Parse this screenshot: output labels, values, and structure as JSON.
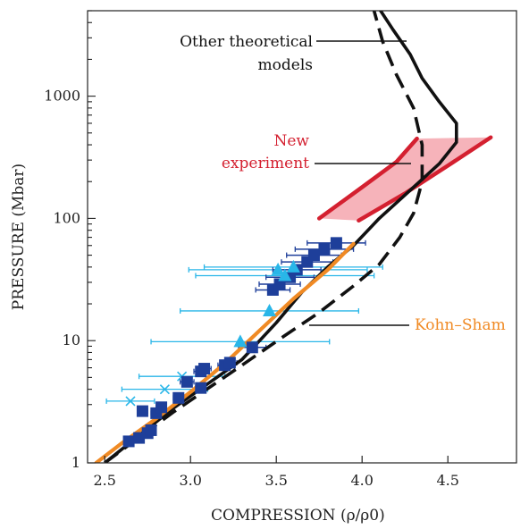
{
  "chart_data": {
    "type": "scatter",
    "xlabel": "COMPRESSION",
    "xlabel_formula": "(ρ/ρ0)",
    "ylabel": "PRESSURE (Mbar)",
    "xlim": [
      2.4,
      4.9
    ],
    "ylim": [
      1,
      5000
    ],
    "yscale": "log",
    "grid": false,
    "x_ticks": [
      2.5,
      3.0,
      3.5,
      4.0,
      4.5
    ],
    "x_tick_labels": [
      "2.5",
      "3.0",
      "3.5",
      "4.0",
      "4.5"
    ],
    "y_ticks": [
      1,
      10,
      100,
      1000
    ],
    "y_tick_labels": [
      "1",
      "10",
      "100",
      "1000"
    ],
    "annotations": {
      "other_models": [
        "Other theoretical",
        "models"
      ],
      "new_experiment": [
        "New",
        "experiment"
      ],
      "kohn_sham": "Kohn–Sham"
    },
    "colors": {
      "kohn_sham": "#f08a24",
      "new_experiment": "#d42030",
      "new_experiment_fill": "#f4a6ae",
      "square_points": "#1e3f9a",
      "triangle_points": "#29b6e8",
      "models": "#111111"
    },
    "series": [
      {
        "style": "kohn-sham-line",
        "points": [
          [
            2.45,
            1.0
          ],
          [
            2.6,
            1.45
          ],
          [
            2.8,
            2.3
          ],
          [
            3.0,
            3.8
          ],
          [
            3.2,
            6.5
          ],
          [
            3.4,
            12
          ],
          [
            3.6,
            22
          ],
          [
            3.8,
            38
          ],
          [
            3.95,
            62
          ]
        ]
      },
      {
        "style": "model-solid",
        "points": [
          [
            2.5,
            1.0
          ],
          [
            2.9,
            2.8
          ],
          [
            3.3,
            7.0
          ],
          [
            3.5,
            14
          ],
          [
            3.65,
            25
          ],
          [
            3.8,
            40
          ],
          [
            3.95,
            60
          ],
          [
            4.1,
            100
          ],
          [
            4.3,
            180
          ],
          [
            4.45,
            280
          ],
          [
            4.55,
            420
          ],
          [
            4.55,
            600
          ],
          [
            4.45,
            900
          ],
          [
            4.35,
            1400
          ],
          [
            4.28,
            2200
          ],
          [
            4.18,
            3500
          ],
          [
            4.1,
            5200
          ]
        ]
      },
      {
        "style": "model-dashed",
        "points": [
          [
            2.5,
            1.0
          ],
          [
            2.9,
            2.6
          ],
          [
            3.3,
            6.3
          ],
          [
            3.55,
            11
          ],
          [
            3.75,
            17
          ],
          [
            3.95,
            28
          ],
          [
            4.1,
            42
          ],
          [
            4.22,
            70
          ],
          [
            4.3,
            110
          ],
          [
            4.35,
            200
          ],
          [
            4.35,
            400
          ],
          [
            4.3,
            800
          ],
          [
            4.2,
            1500
          ],
          [
            4.12,
            2800
          ],
          [
            4.07,
            5000
          ]
        ]
      },
      {
        "style": "experiment-band",
        "upper": [
          [
            3.75,
            100
          ],
          [
            4.0,
            180
          ],
          [
            4.2,
            290
          ],
          [
            4.32,
            450
          ]
        ],
        "lower": [
          [
            3.98,
            96
          ],
          [
            4.25,
            160
          ],
          [
            4.5,
            270
          ],
          [
            4.75,
            460
          ]
        ]
      },
      {
        "style": "squares",
        "points": [
          {
            "x": 2.64,
            "y": 1.5,
            "xerr": 0.02
          },
          {
            "x": 2.7,
            "y": 1.6,
            "xerr": 0.03
          },
          {
            "x": 2.75,
            "y": 1.75,
            "xerr": 0.02
          },
          {
            "x": 2.77,
            "y": 1.85,
            "xerr": 0.02
          },
          {
            "x": 2.72,
            "y": 2.65,
            "xerr": 0.03
          },
          {
            "x": 2.8,
            "y": 2.55,
            "xerr": 0.03
          },
          {
            "x": 2.83,
            "y": 2.85,
            "xerr": 0.03
          },
          {
            "x": 2.93,
            "y": 3.4,
            "xerr": 0.03
          },
          {
            "x": 2.98,
            "y": 4.6,
            "xerr": 0.04
          },
          {
            "x": 3.06,
            "y": 4.1,
            "xerr": 0.03
          },
          {
            "x": 3.06,
            "y": 5.6,
            "xerr": 0.04
          },
          {
            "x": 3.08,
            "y": 5.9,
            "xerr": 0.04
          },
          {
            "x": 3.2,
            "y": 6.3,
            "xerr": 0.04
          },
          {
            "x": 3.23,
            "y": 6.6,
            "xerr": 0.04
          },
          {
            "x": 3.36,
            "y": 8.8,
            "xerr": 0.08
          },
          {
            "x": 3.48,
            "y": 26,
            "xerr": 0.1
          },
          {
            "x": 3.52,
            "y": 29,
            "xerr": 0.12
          },
          {
            "x": 3.58,
            "y": 33,
            "xerr": 0.14
          },
          {
            "x": 3.62,
            "y": 38,
            "xerr": 0.14
          },
          {
            "x": 3.68,
            "y": 44,
            "xerr": 0.15
          },
          {
            "x": 3.72,
            "y": 50,
            "xerr": 0.16
          },
          {
            "x": 3.78,
            "y": 56,
            "xerr": 0.17
          },
          {
            "x": 3.85,
            "y": 63,
            "xerr": 0.17
          }
        ]
      },
      {
        "style": "triangles",
        "points": [
          {
            "x": 3.51,
            "y": 38,
            "xerr": 0.52
          },
          {
            "x": 3.6,
            "y": 40,
            "xerr": 0.52
          },
          {
            "x": 3.55,
            "y": 34,
            "xerr": 0.52
          },
          {
            "x": 3.46,
            "y": 17.5,
            "xerr": 0.52
          },
          {
            "x": 3.29,
            "y": 9.8,
            "xerr": 0.52
          }
        ]
      },
      {
        "style": "crosses",
        "points": [
          {
            "x": 2.65,
            "y": 3.2,
            "xerr": 0.14
          },
          {
            "x": 2.85,
            "y": 4.0,
            "xerr": 0.25
          },
          {
            "x": 2.95,
            "y": 5.1,
            "xerr": 0.25
          }
        ]
      }
    ]
  }
}
